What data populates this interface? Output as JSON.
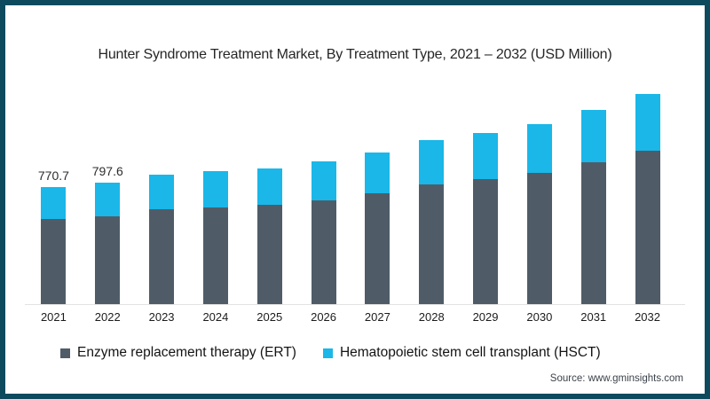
{
  "frame": {
    "border_color": "#0e4a5e",
    "background": "#ffffff"
  },
  "title": "Hunter Syndrome Treatment Market, By Treatment Type, 2021 – 2032 (USD Million)",
  "source": "Source: www.gminsights.com",
  "legend": {
    "items": [
      {
        "label": "Enzyme replacement therapy (ERT)",
        "color": "#4f5c68"
      },
      {
        "label": "Hematopoietic stem cell transplant (HSCT)",
        "color": "#1ab7e8"
      }
    ]
  },
  "chart_data": {
    "type": "bar",
    "stacked": true,
    "title": "Hunter Syndrome Treatment Market, By Treatment Type, 2021 – 2032 (USD Million)",
    "xlabel": "",
    "ylabel": "",
    "y_axis_visible": false,
    "grid": false,
    "legend_position": "bottom",
    "categories": [
      "2021",
      "2022",
      "2023",
      "2024",
      "2025",
      "2026",
      "2027",
      "2028",
      "2029",
      "2030",
      "2031",
      "2032"
    ],
    "series": [
      {
        "name": "Enzyme replacement therapy (ERT)",
        "color": "#4f5c68",
        "values": [
          557.0,
          577.0,
          622,
          638,
          653,
          681,
          729,
          787,
          822,
          865,
          935,
          1010
        ]
      },
      {
        "name": "Hematopoietic stem cell transplant (HSCT)",
        "color": "#1ab7e8",
        "values": [
          213.7,
          220.6,
          226,
          238,
          237,
          257,
          268,
          289,
          301,
          320,
          343,
          370
        ]
      }
    ],
    "totals": [
      770.7,
      797.6,
      848,
      876,
      890,
      938,
      997,
      1076,
      1123,
      1185,
      1278,
      1380
    ],
    "data_labels": [
      "770.7",
      "797.6",
      "",
      "",
      "",
      "",
      "",
      "",
      "",
      "",
      "",
      ""
    ]
  }
}
